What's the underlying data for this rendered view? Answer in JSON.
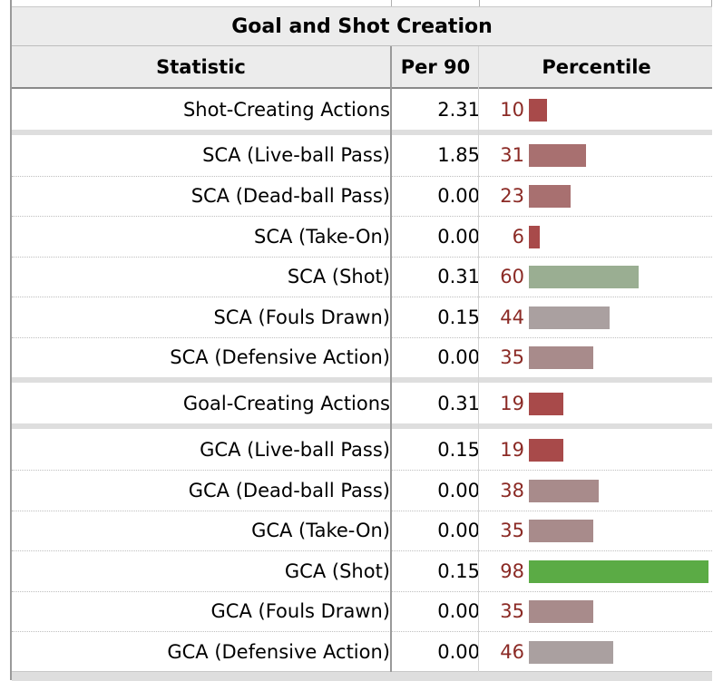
{
  "table": {
    "title": "Goal and Shot Creation",
    "columns": [
      "Statistic",
      "Per 90",
      "Percentile"
    ],
    "rows": [
      {
        "stat": "Shot-Creating Actions",
        "per90": "2.31",
        "pct": "10"
      },
      {
        "stat": "SCA (Live-ball Pass)",
        "per90": "1.85",
        "pct": "31"
      },
      {
        "stat": "SCA (Dead-ball Pass)",
        "per90": "0.00",
        "pct": "23"
      },
      {
        "stat": "SCA (Take-On)",
        "per90": "0.00",
        "pct": "6"
      },
      {
        "stat": "SCA (Shot)",
        "per90": "0.31",
        "pct": "60"
      },
      {
        "stat": "SCA (Fouls Drawn)",
        "per90": "0.15",
        "pct": "44"
      },
      {
        "stat": "SCA (Defensive Action)",
        "per90": "0.00",
        "pct": "35"
      },
      {
        "stat": "Goal-Creating Actions",
        "per90": "0.31",
        "pct": "19"
      },
      {
        "stat": "GCA (Live-ball Pass)",
        "per90": "0.15",
        "pct": "19"
      },
      {
        "stat": "GCA (Dead-ball Pass)",
        "per90": "0.00",
        "pct": "38"
      },
      {
        "stat": "GCA (Take-On)",
        "per90": "0.00",
        "pct": "35"
      },
      {
        "stat": "GCA (Shot)",
        "per90": "0.15",
        "pct": "98"
      },
      {
        "stat": "GCA (Fouls Drawn)",
        "per90": "0.00",
        "pct": "35"
      },
      {
        "stat": "GCA (Defensive Action)",
        "per90": "0.00",
        "pct": "46"
      }
    ]
  },
  "bar_colors": {
    "very_low": "#a84a4a",
    "low": "#a87070",
    "mid_low": "#a88b8b",
    "mid": "#aaa0a0",
    "above_avg": "#9aae92",
    "elite": "#5bab45"
  }
}
